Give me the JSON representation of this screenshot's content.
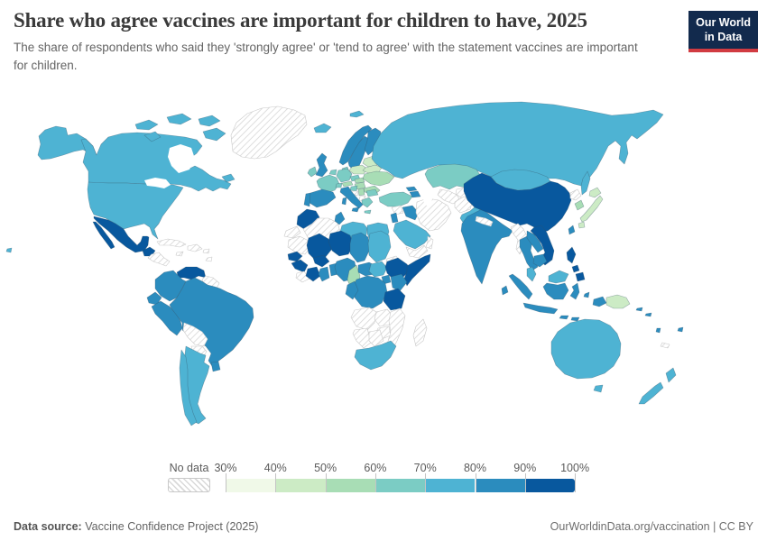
{
  "header": {
    "title": "Share who agree vaccines are important for children to have, 2025",
    "subtitle": "The share of respondents who said they 'strongly agree' or 'tend to agree' with the statement vaccines are important for children.",
    "logo": {
      "line1": "Our World",
      "line2": "in Data",
      "bg_color": "#122a4d",
      "accent_color": "#d13b41"
    }
  },
  "legend": {
    "no_data_label": "No data",
    "tick_labels": [
      "30%",
      "40%",
      "50%",
      "60%",
      "70%",
      "80%",
      "90%",
      "100%"
    ]
  },
  "footer": {
    "source_label": "Data source:",
    "source_value": " Vaccine Confidence Project (2025)",
    "right_text": "OurWorldinData.org/vaccination | CC BY"
  },
  "chart_data": {
    "type": "choropleth",
    "title": "Share who agree vaccines are important for children to have, 2025",
    "unit": "share of respondents (%)",
    "year": "2025",
    "legend_position": "bottom",
    "bin_edges": [
      30,
      40,
      50,
      60,
      70,
      80,
      90,
      100
    ],
    "bins": [
      {
        "key": "30-40",
        "label": "30-40%",
        "color": "#f0f9e8"
      },
      {
        "key": "40-50",
        "label": "40-50%",
        "color": "#ccebc5"
      },
      {
        "key": "50-60",
        "label": "50-60%",
        "color": "#a8ddb5"
      },
      {
        "key": "60-70",
        "label": "60-70%",
        "color": "#7bccc4"
      },
      {
        "key": "70-80",
        "label": "70-80%",
        "color": "#4eb3d3"
      },
      {
        "key": "80-90",
        "label": "80-90%",
        "color": "#2b8cbe"
      },
      {
        "key": "90-100",
        "label": "90-100%",
        "color": "#08589e"
      },
      {
        "key": "no-data",
        "label": "No data",
        "color": "#ffffff",
        "pattern": "diagonal-hatch"
      }
    ],
    "values": {
      "united-states": "70-80",
      "canada": "70-80",
      "greenland": "no-data",
      "mexico": "90-100",
      "guatemala": "90-100",
      "central-america": "no-data",
      "cuba": "no-data",
      "jamaica": "no-data",
      "hispaniola": "no-data",
      "puerto-rico": "no-data",
      "lesser-antilles": "no-data",
      "venezuela": "90-100",
      "colombia": "80-90",
      "guyanas": "no-data",
      "ecuador": "80-90",
      "peru": "80-90",
      "brazil": "80-90",
      "bolivia": "no-data",
      "paraguay": "no-data",
      "uruguay": "80-90",
      "argentina": "70-80",
      "chile": "70-80",
      "iceland": "70-80",
      "svalbard": "70-80",
      "norway": "80-90",
      "sweden": "80-90",
      "finland": "80-90",
      "denmark": "60-70",
      "united-kingdom": "80-90",
      "ireland": "60-70",
      "netherlands-belgium": "60-70",
      "germany": "60-70",
      "france": "60-70",
      "switzerland": "60-70",
      "czechia": "60-70",
      "austria": "50-60",
      "slovakia": "50-60",
      "hungary": "50-60",
      "poland": "40-50",
      "baltics": "40-50",
      "belarus": "40-50",
      "ukraine": "50-60",
      "romania": "50-60",
      "serbia": "50-60",
      "croatia": "60-70",
      "bosnia": "no-data",
      "albania-macedonia": "no-data",
      "bulgaria": "60-70",
      "greece": "60-70",
      "spain": "80-90",
      "portugal": "80-90",
      "italy": "80-90",
      "russia": "70-80",
      "kazakhstan": "60-70",
      "kyrgyzstan": "40-50",
      "tajikistan": "no-data",
      "uzbekistan": "no-data",
      "turkmenistan": "no-data",
      "turkey": "60-70",
      "georgia": "80-90",
      "azerbaijan": "80-90",
      "syria": "no-data",
      "jordan-israel": "80-90",
      "iraq": "80-90",
      "iran": "no-data",
      "saudi-arabia": "70-80",
      "yemen": "no-data",
      "oman": "no-data",
      "afghanistan": "no-data",
      "pakistan": "70-80",
      "india": "80-90",
      "nepal": "no-data",
      "sri-lanka": "80-90",
      "myanmar": "no-data",
      "thailand": "80-90",
      "laos": "80-90",
      "vietnam": "90-100",
      "cambodia": "80-90",
      "malaysia": "70-80",
      "indonesia": "80-90",
      "philippines": "90-100",
      "china": "90-100",
      "mongolia": "70-80",
      "north-korea": "no-data",
      "south-korea": "50-60",
      "japan": "40-50",
      "taiwan": "80-90",
      "papua-new-guinea": "40-50",
      "solomon-islands": "80-90",
      "vanuatu": "80-90",
      "fiji": "80-90",
      "new-caledonia": "no-data",
      "australia": "70-80",
      "new-zealand": "70-80",
      "morocco": "90-100",
      "western-sahara": "no-data",
      "algeria": "no-data",
      "tunisia": "80-90",
      "libya": "70-80",
      "egypt": "70-80",
      "mauritania": "no-data",
      "mali": "90-100",
      "niger": "90-100",
      "chad": "80-90",
      "sudan": "70-80",
      "eritrea": "no-data",
      "senegal": "90-100",
      "guinea": "90-100",
      "sierra-leone-liberia": "no-data",
      "ivory-coast": "90-100",
      "ghana": "80-90",
      "togo-benin": "80-90",
      "burkina-faso": "90-100",
      "nigeria": "80-90",
      "cameroon": "50-60",
      "central-african-republic": "80-90",
      "south-sudan": "70-80",
      "ethiopia": "90-100",
      "somalia": "90-100",
      "uganda": "80-90",
      "kenya": "80-90",
      "democratic-republic-of-congo": "80-90",
      "gabon-congo": "80-90",
      "tanzania": "90-100",
      "angola": "no-data",
      "zambia": "no-data",
      "mozambique": "no-data",
      "zimbabwe": "no-data",
      "namibia": "no-data",
      "botswana": "no-data",
      "south-africa": "70-80",
      "madagascar": "no-data"
    }
  }
}
